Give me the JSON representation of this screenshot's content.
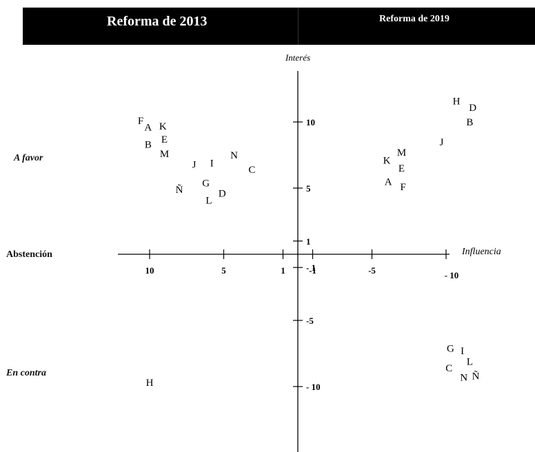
{
  "header": {
    "left_title": "Reforma de 2013",
    "right_title": "Reforma de 2019",
    "background": "#000000",
    "text_color": "#ffffff"
  },
  "side_labels": {
    "favor": "A favor",
    "abstencion": "Abstención",
    "contra": "En contra"
  },
  "chart_data": {
    "type": "scatter",
    "title": "",
    "xlabel": "Influencia",
    "ylabel": "Interés",
    "xlim": [
      12,
      -12
    ],
    "ylim": [
      -12,
      13
    ],
    "x_ticks": [
      {
        "v": 10,
        "label": "10"
      },
      {
        "v": 5,
        "label": "5"
      },
      {
        "v": 1,
        "label": "1"
      },
      {
        "v": -1,
        "label": "-1"
      },
      {
        "v": -5,
        "label": "-5"
      },
      {
        "v": -10,
        "label": "- 10"
      }
    ],
    "y_ticks": [
      {
        "v": 10,
        "label": "10"
      },
      {
        "v": 5,
        "label": "5"
      },
      {
        "v": 1,
        "label": "1"
      },
      {
        "v": -1,
        "label": "- 1"
      },
      {
        "v": -5,
        "label": "-5"
      },
      {
        "v": -10,
        "label": "- 10"
      }
    ],
    "series": [
      {
        "name": "Reforma de 2013",
        "points": [
          {
            "label": "F",
            "x": 10.6,
            "y": 10.1
          },
          {
            "label": "A",
            "x": 10.1,
            "y": 9.6
          },
          {
            "label": "K",
            "x": 9.1,
            "y": 9.7
          },
          {
            "label": "E",
            "x": 9.0,
            "y": 8.7
          },
          {
            "label": "B",
            "x": 10.1,
            "y": 8.3
          },
          {
            "label": "M",
            "x": 9.0,
            "y": 7.6
          },
          {
            "label": "J",
            "x": 7.0,
            "y": 6.8
          },
          {
            "label": "I",
            "x": 5.8,
            "y": 6.9
          },
          {
            "label": "N",
            "x": 4.3,
            "y": 7.5
          },
          {
            "label": "C",
            "x": 3.1,
            "y": 6.4
          },
          {
            "label": "G",
            "x": 6.2,
            "y": 5.4
          },
          {
            "label": "Ñ",
            "x": 8.0,
            "y": 4.9
          },
          {
            "label": "D",
            "x": 5.1,
            "y": 4.6
          },
          {
            "label": "L",
            "x": 6.0,
            "y": 4.1
          },
          {
            "label": "H",
            "x": 10.0,
            "y": -9.7
          }
        ]
      },
      {
        "name": "Reforma de 2019",
        "points": [
          {
            "label": "H",
            "x": -10.7,
            "y": 11.6
          },
          {
            "label": "D",
            "x": -11.8,
            "y": 11.1
          },
          {
            "label": "B",
            "x": -11.6,
            "y": 10.0
          },
          {
            "label": "J",
            "x": -9.7,
            "y": 8.5
          },
          {
            "label": "M",
            "x": -7.0,
            "y": 7.7
          },
          {
            "label": "K",
            "x": -6.0,
            "y": 7.1
          },
          {
            "label": "E",
            "x": -7.0,
            "y": 6.5
          },
          {
            "label": "A",
            "x": -6.1,
            "y": 5.5
          },
          {
            "label": "F",
            "x": -7.1,
            "y": 5.1
          },
          {
            "label": "G",
            "x": -10.3,
            "y": -7.1
          },
          {
            "label": "I",
            "x": -11.1,
            "y": -7.3
          },
          {
            "label": "L",
            "x": -11.6,
            "y": -8.1
          },
          {
            "label": "C",
            "x": -10.2,
            "y": -8.6
          },
          {
            "label": "N",
            "x": -11.2,
            "y": -9.3
          },
          {
            "label": "Ñ",
            "x": -12.0,
            "y": -9.2
          }
        ]
      }
    ]
  }
}
